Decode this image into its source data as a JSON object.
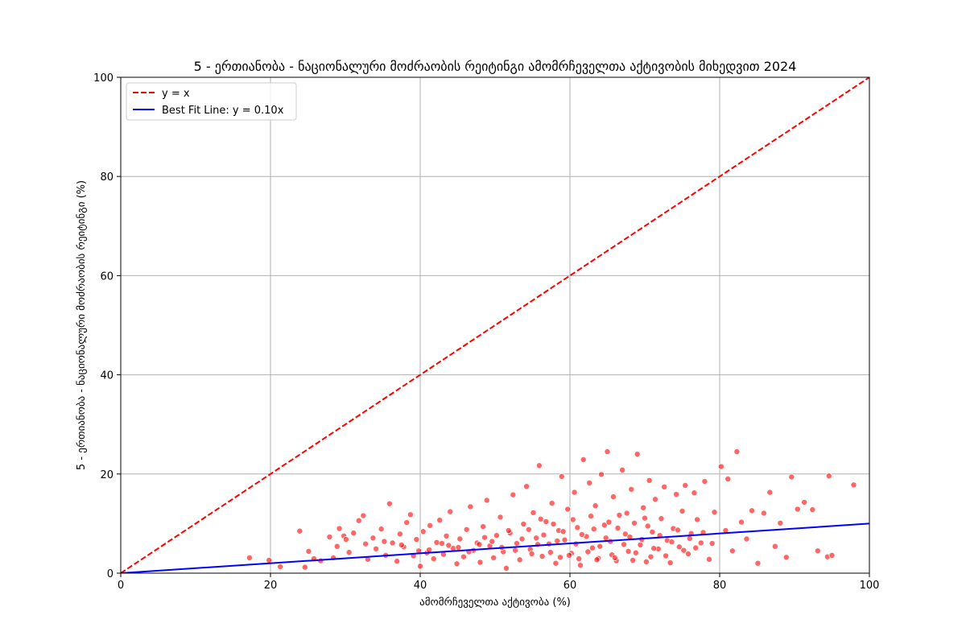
{
  "chart_data": {
    "type": "scatter",
    "title": "5 - ერთიანობა - ნაციონალური მოძრაობის რეიტინგი ამომრჩეველთა აქტივობის მიხედვით 2024",
    "xlabel": "ამომრჩეველთა აქტივობა (%)",
    "ylabel": "5 - ერთიანობა - ნაციონალური მოძრაობის რეიტინგი (%)",
    "xlim": [
      0,
      100
    ],
    "ylim": [
      0,
      100
    ],
    "xticks": [
      "0",
      "20",
      "40",
      "60",
      "80",
      "100"
    ],
    "yticks": [
      "0",
      "20",
      "40",
      "60",
      "80",
      "100"
    ],
    "grid": true,
    "legend_position": "top-left",
    "colors": {
      "points": "#ff0000",
      "identity_line": "#ff0000",
      "fit_line": "#0000ff",
      "grid": "#b0b0b0"
    },
    "lines": [
      {
        "name": "y = x",
        "style": "dashed",
        "slope": 1.0
      },
      {
        "name": "Best Fit Line: y = 0.10x",
        "style": "solid",
        "slope": 0.1
      }
    ],
    "points": [
      [
        17.2,
        3.1
      ],
      [
        19.8,
        2.6
      ],
      [
        21.3,
        1.3
      ],
      [
        23.9,
        8.5
      ],
      [
        24.6,
        1.2
      ],
      [
        25.1,
        4.4
      ],
      [
        25.8,
        2.9
      ],
      [
        26.7,
        2.5
      ],
      [
        27.9,
        7.3
      ],
      [
        28.4,
        3.1
      ],
      [
        29.2,
        9.0
      ],
      [
        29.8,
        7.5
      ],
      [
        30.5,
        4.2
      ],
      [
        31.1,
        8.1
      ],
      [
        31.8,
        10.6
      ],
      [
        32.4,
        11.6
      ],
      [
        33.0,
        2.8
      ],
      [
        33.7,
        7.1
      ],
      [
        34.1,
        4.9
      ],
      [
        34.8,
        8.9
      ],
      [
        35.4,
        3.6
      ],
      [
        35.9,
        14.0
      ],
      [
        36.3,
        6.1
      ],
      [
        36.9,
        2.4
      ],
      [
        37.3,
        7.9
      ],
      [
        37.8,
        5.3
      ],
      [
        38.2,
        10.2
      ],
      [
        38.7,
        11.8
      ],
      [
        39.1,
        3.5
      ],
      [
        39.5,
        6.8
      ],
      [
        40.0,
        1.4
      ],
      [
        40.4,
        8.4
      ],
      [
        40.9,
        4.1
      ],
      [
        41.3,
        9.6
      ],
      [
        41.8,
        2.9
      ],
      [
        42.2,
        6.2
      ],
      [
        42.6,
        10.7
      ],
      [
        43.1,
        3.8
      ],
      [
        43.5,
        7.5
      ],
      [
        44.0,
        12.4
      ],
      [
        44.4,
        5.0
      ],
      [
        44.9,
        1.9
      ],
      [
        45.3,
        6.9
      ],
      [
        45.8,
        3.3
      ],
      [
        46.2,
        8.8
      ],
      [
        46.7,
        13.4
      ],
      [
        47.1,
        4.6
      ],
      [
        47.6,
        6.1
      ],
      [
        48.0,
        2.2
      ],
      [
        48.4,
        9.4
      ],
      [
        48.9,
        14.7
      ],
      [
        49.3,
        5.5
      ],
      [
        49.8,
        3.1
      ],
      [
        50.2,
        7.6
      ],
      [
        50.7,
        11.3
      ],
      [
        51.1,
        4.3
      ],
      [
        51.5,
        1.0
      ],
      [
        52.0,
        8.1
      ],
      [
        52.4,
        15.8
      ],
      [
        52.9,
        6.0
      ],
      [
        53.3,
        2.7
      ],
      [
        53.8,
        9.9
      ],
      [
        54.2,
        17.5
      ],
      [
        54.7,
        4.8
      ],
      [
        55.1,
        12.2
      ],
      [
        55.5,
        7.1
      ],
      [
        55.9,
        21.7
      ],
      [
        56.3,
        3.4
      ],
      [
        56.8,
        10.4
      ],
      [
        57.2,
        5.9
      ],
      [
        57.6,
        14.1
      ],
      [
        58.1,
        2.0
      ],
      [
        58.5,
        8.6
      ],
      [
        58.9,
        19.5
      ],
      [
        59.3,
        6.7
      ],
      [
        59.7,
        12.9
      ],
      [
        60.2,
        4.0
      ],
      [
        60.6,
        16.3
      ],
      [
        61.0,
        9.2
      ],
      [
        61.4,
        1.6
      ],
      [
        61.8,
        22.9
      ],
      [
        62.2,
        7.4
      ],
      [
        62.6,
        18.2
      ],
      [
        63.0,
        5.1
      ],
      [
        63.4,
        13.6
      ],
      [
        63.8,
        3.0
      ],
      [
        64.2,
        19.9
      ],
      [
        64.6,
        9.7
      ],
      [
        65.0,
        24.5
      ],
      [
        65.4,
        6.4
      ],
      [
        65.8,
        15.4
      ],
      [
        66.2,
        2.5
      ],
      [
        66.6,
        11.7
      ],
      [
        67.0,
        20.8
      ],
      [
        67.4,
        7.9
      ],
      [
        67.8,
        4.4
      ],
      [
        68.2,
        16.9
      ],
      [
        68.6,
        10.1
      ],
      [
        69.0,
        24.0
      ],
      [
        69.4,
        5.7
      ],
      [
        69.8,
        13.2
      ],
      [
        70.2,
        2.3
      ],
      [
        70.6,
        18.7
      ],
      [
        71.0,
        8.3
      ],
      [
        71.4,
        14.9
      ],
      [
        71.8,
        4.9
      ],
      [
        72.2,
        11.0
      ],
      [
        72.6,
        17.4
      ],
      [
        73.0,
        6.6
      ],
      [
        73.4,
        2.1
      ],
      [
        73.8,
        9.0
      ],
      [
        74.2,
        15.9
      ],
      [
        74.6,
        5.3
      ],
      [
        75.0,
        12.5
      ],
      [
        75.4,
        17.7
      ],
      [
        75.8,
        3.9
      ],
      [
        76.2,
        8.0
      ],
      [
        76.6,
        16.2
      ],
      [
        77.0,
        10.8
      ],
      [
        77.5,
        6.1
      ],
      [
        78.0,
        18.5
      ],
      [
        78.6,
        2.8
      ],
      [
        79.3,
        12.3
      ],
      [
        80.2,
        21.5
      ],
      [
        80.8,
        8.6
      ],
      [
        81.1,
        19.0
      ],
      [
        81.7,
        4.5
      ],
      [
        82.3,
        24.5
      ],
      [
        82.9,
        10.3
      ],
      [
        83.6,
        6.9
      ],
      [
        84.3,
        12.6
      ],
      [
        85.1,
        2.0
      ],
      [
        85.9,
        12.1
      ],
      [
        86.7,
        16.3
      ],
      [
        87.4,
        5.4
      ],
      [
        88.1,
        10.1
      ],
      [
        88.9,
        3.2
      ],
      [
        89.6,
        19.4
      ],
      [
        90.4,
        12.9
      ],
      [
        91.3,
        14.3
      ],
      [
        92.4,
        12.8
      ],
      [
        93.1,
        4.5
      ],
      [
        94.4,
        3.3
      ],
      [
        94.6,
        19.6
      ],
      [
        95.0,
        3.6
      ],
      [
        97.9,
        17.8
      ],
      [
        41.2,
        4.7
      ],
      [
        43.8,
        5.6
      ],
      [
        46.5,
        4.3
      ],
      [
        47.9,
        5.8
      ],
      [
        49.6,
        6.4
      ],
      [
        50.9,
        5.2
      ],
      [
        52.7,
        4.6
      ],
      [
        53.6,
        6.9
      ],
      [
        54.9,
        3.9
      ],
      [
        55.7,
        5.8
      ],
      [
        56.5,
        7.7
      ],
      [
        57.4,
        4.2
      ],
      [
        58.3,
        6.5
      ],
      [
        59.1,
        8.4
      ],
      [
        59.9,
        3.6
      ],
      [
        60.8,
        5.9
      ],
      [
        61.6,
        7.8
      ],
      [
        62.4,
        4.3
      ],
      [
        63.2,
        8.9
      ],
      [
        64.0,
        5.4
      ],
      [
        64.8,
        7.1
      ],
      [
        65.6,
        3.7
      ],
      [
        66.4,
        9.1
      ],
      [
        67.2,
        5.8
      ],
      [
        68.0,
        7.3
      ],
      [
        68.8,
        4.1
      ],
      [
        69.6,
        6.8
      ],
      [
        70.4,
        9.5
      ],
      [
        71.2,
        5.0
      ],
      [
        72.0,
        7.6
      ],
      [
        72.8,
        3.5
      ],
      [
        73.6,
        6.3
      ],
      [
        74.4,
        8.7
      ],
      [
        75.2,
        4.6
      ],
      [
        76.0,
        7.0
      ],
      [
        76.8,
        5.1
      ],
      [
        77.8,
        8.2
      ],
      [
        79.0,
        6.0
      ],
      [
        57.8,
        9.9
      ],
      [
        60.4,
        10.8
      ],
      [
        62.8,
        11.5
      ],
      [
        65.2,
        10.3
      ],
      [
        67.6,
        12.1
      ],
      [
        70.0,
        11.1
      ],
      [
        58.7,
        3.2
      ],
      [
        61.2,
        2.9
      ],
      [
        63.6,
        2.7
      ],
      [
        66.0,
        3.1
      ],
      [
        68.4,
        2.6
      ],
      [
        70.8,
        3.3
      ],
      [
        54.5,
        8.8
      ],
      [
        56.1,
        10.9
      ],
      [
        48.6,
        7.2
      ],
      [
        51.8,
        8.6
      ],
      [
        45.1,
        5.2
      ],
      [
        42.9,
        6.0
      ],
      [
        39.8,
        4.5
      ],
      [
        37.5,
        5.7
      ],
      [
        35.2,
        6.4
      ],
      [
        32.7,
        5.9
      ],
      [
        30.1,
        6.8
      ],
      [
        28.9,
        5.4
      ]
    ]
  }
}
